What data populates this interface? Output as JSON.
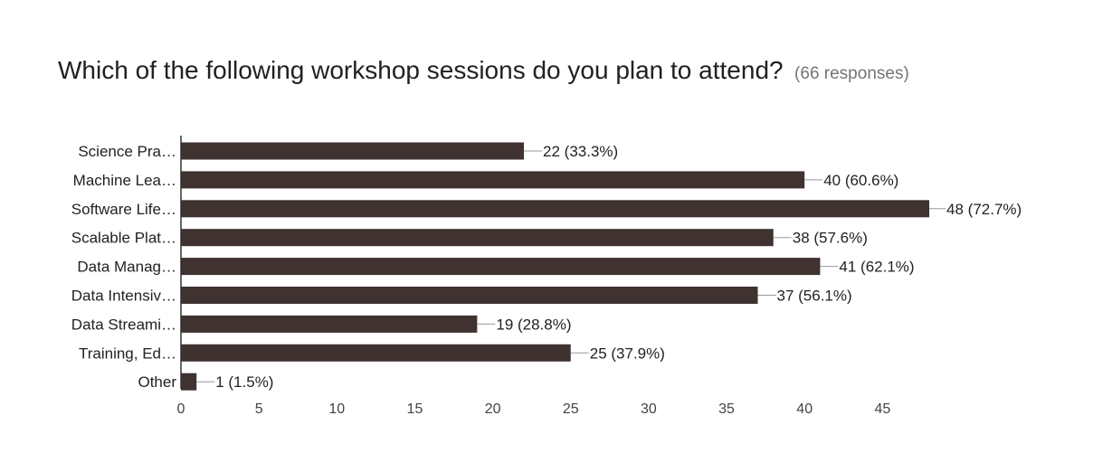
{
  "question": {
    "title": "Which of the following workshop sessions do you plan to attend?",
    "responses_label": "(66 responses)"
  },
  "chart_data": {
    "type": "bar",
    "orientation": "horizontal",
    "categories": [
      "Science Pra…",
      "Machine Lea…",
      "Software Life…",
      "Scalable Plat…",
      "Data Manag…",
      "Data Intensiv…",
      "Data Streami…",
      "Training, Ed…",
      "Other"
    ],
    "values": [
      22,
      40,
      48,
      38,
      41,
      37,
      19,
      25,
      1
    ],
    "value_labels": [
      "22 (33.3%)",
      "40 (60.6%)",
      "48 (72.7%)",
      "38 (57.6%)",
      "41 (62.1%)",
      "37 (56.1%)",
      "19 (28.8%)",
      "25 (37.9%)",
      "1 (1.5%)"
    ],
    "x_ticks": [
      0,
      5,
      10,
      15,
      20,
      25,
      30,
      35,
      40,
      45
    ],
    "xlim": [
      0,
      48
    ],
    "grid": false,
    "colors": {
      "bar": "#3f3230",
      "axis": "#333333",
      "leader": "#999999",
      "label": "#222222",
      "tick_label": "#444444"
    }
  }
}
